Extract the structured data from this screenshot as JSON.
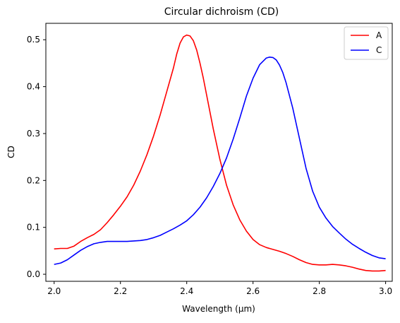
{
  "chart_data": {
    "type": "line",
    "title": "Circular dichroism (CD)",
    "xlabel": "Wavelength (μm)",
    "ylabel": "CD",
    "xlim": [
      1.975,
      3.02
    ],
    "ylim": [
      -0.015,
      0.535
    ],
    "xticks": [
      "2.0",
      "2.2",
      "2.4",
      "2.6",
      "2.8",
      "3.0"
    ],
    "yticks": [
      "0.0",
      "0.1",
      "0.2",
      "0.3",
      "0.4",
      "0.5"
    ],
    "grid": false,
    "legend_position": "top-right",
    "series": [
      {
        "name": "A",
        "color": "#ff0000",
        "x": [
          2.0,
          2.02,
          2.04,
          2.06,
          2.08,
          2.1,
          2.12,
          2.14,
          2.16,
          2.18,
          2.2,
          2.22,
          2.24,
          2.26,
          2.28,
          2.3,
          2.32,
          2.34,
          2.36,
          2.37,
          2.38,
          2.39,
          2.4,
          2.41,
          2.42,
          2.43,
          2.44,
          2.45,
          2.46,
          2.48,
          2.5,
          2.52,
          2.54,
          2.56,
          2.58,
          2.6,
          2.62,
          2.64,
          2.66,
          2.68,
          2.7,
          2.72,
          2.74,
          2.76,
          2.78,
          2.8,
          2.82,
          2.84,
          2.86,
          2.88,
          2.9,
          2.92,
          2.94,
          2.96,
          2.98,
          3.0
        ],
        "y": [
          0.054,
          0.055,
          0.055,
          0.06,
          0.07,
          0.078,
          0.085,
          0.095,
          0.11,
          0.127,
          0.145,
          0.165,
          0.19,
          0.22,
          0.255,
          0.295,
          0.34,
          0.39,
          0.44,
          0.47,
          0.493,
          0.506,
          0.51,
          0.508,
          0.498,
          0.478,
          0.45,
          0.418,
          0.382,
          0.31,
          0.245,
          0.19,
          0.148,
          0.116,
          0.092,
          0.074,
          0.063,
          0.057,
          0.053,
          0.049,
          0.044,
          0.038,
          0.031,
          0.025,
          0.021,
          0.02,
          0.02,
          0.021,
          0.02,
          0.018,
          0.015,
          0.011,
          0.008,
          0.007,
          0.007,
          0.008
        ]
      },
      {
        "name": "C",
        "color": "#0000ff",
        "x": [
          2.0,
          2.02,
          2.04,
          2.06,
          2.08,
          2.1,
          2.12,
          2.14,
          2.16,
          2.18,
          2.2,
          2.22,
          2.24,
          2.26,
          2.28,
          2.3,
          2.32,
          2.34,
          2.36,
          2.38,
          2.4,
          2.42,
          2.44,
          2.46,
          2.48,
          2.5,
          2.52,
          2.54,
          2.56,
          2.58,
          2.6,
          2.62,
          2.64,
          2.65,
          2.66,
          2.67,
          2.68,
          2.69,
          2.7,
          2.72,
          2.74,
          2.76,
          2.78,
          2.8,
          2.82,
          2.84,
          2.86,
          2.88,
          2.9,
          2.92,
          2.94,
          2.96,
          2.98,
          3.0
        ],
        "y": [
          0.021,
          0.024,
          0.031,
          0.041,
          0.051,
          0.059,
          0.065,
          0.068,
          0.07,
          0.07,
          0.07,
          0.07,
          0.071,
          0.072,
          0.074,
          0.078,
          0.083,
          0.09,
          0.097,
          0.105,
          0.114,
          0.127,
          0.143,
          0.163,
          0.187,
          0.215,
          0.248,
          0.288,
          0.333,
          0.38,
          0.418,
          0.447,
          0.461,
          0.463,
          0.462,
          0.457,
          0.446,
          0.43,
          0.408,
          0.354,
          0.29,
          0.226,
          0.177,
          0.143,
          0.12,
          0.102,
          0.088,
          0.075,
          0.064,
          0.055,
          0.047,
          0.04,
          0.035,
          0.033
        ]
      }
    ]
  }
}
